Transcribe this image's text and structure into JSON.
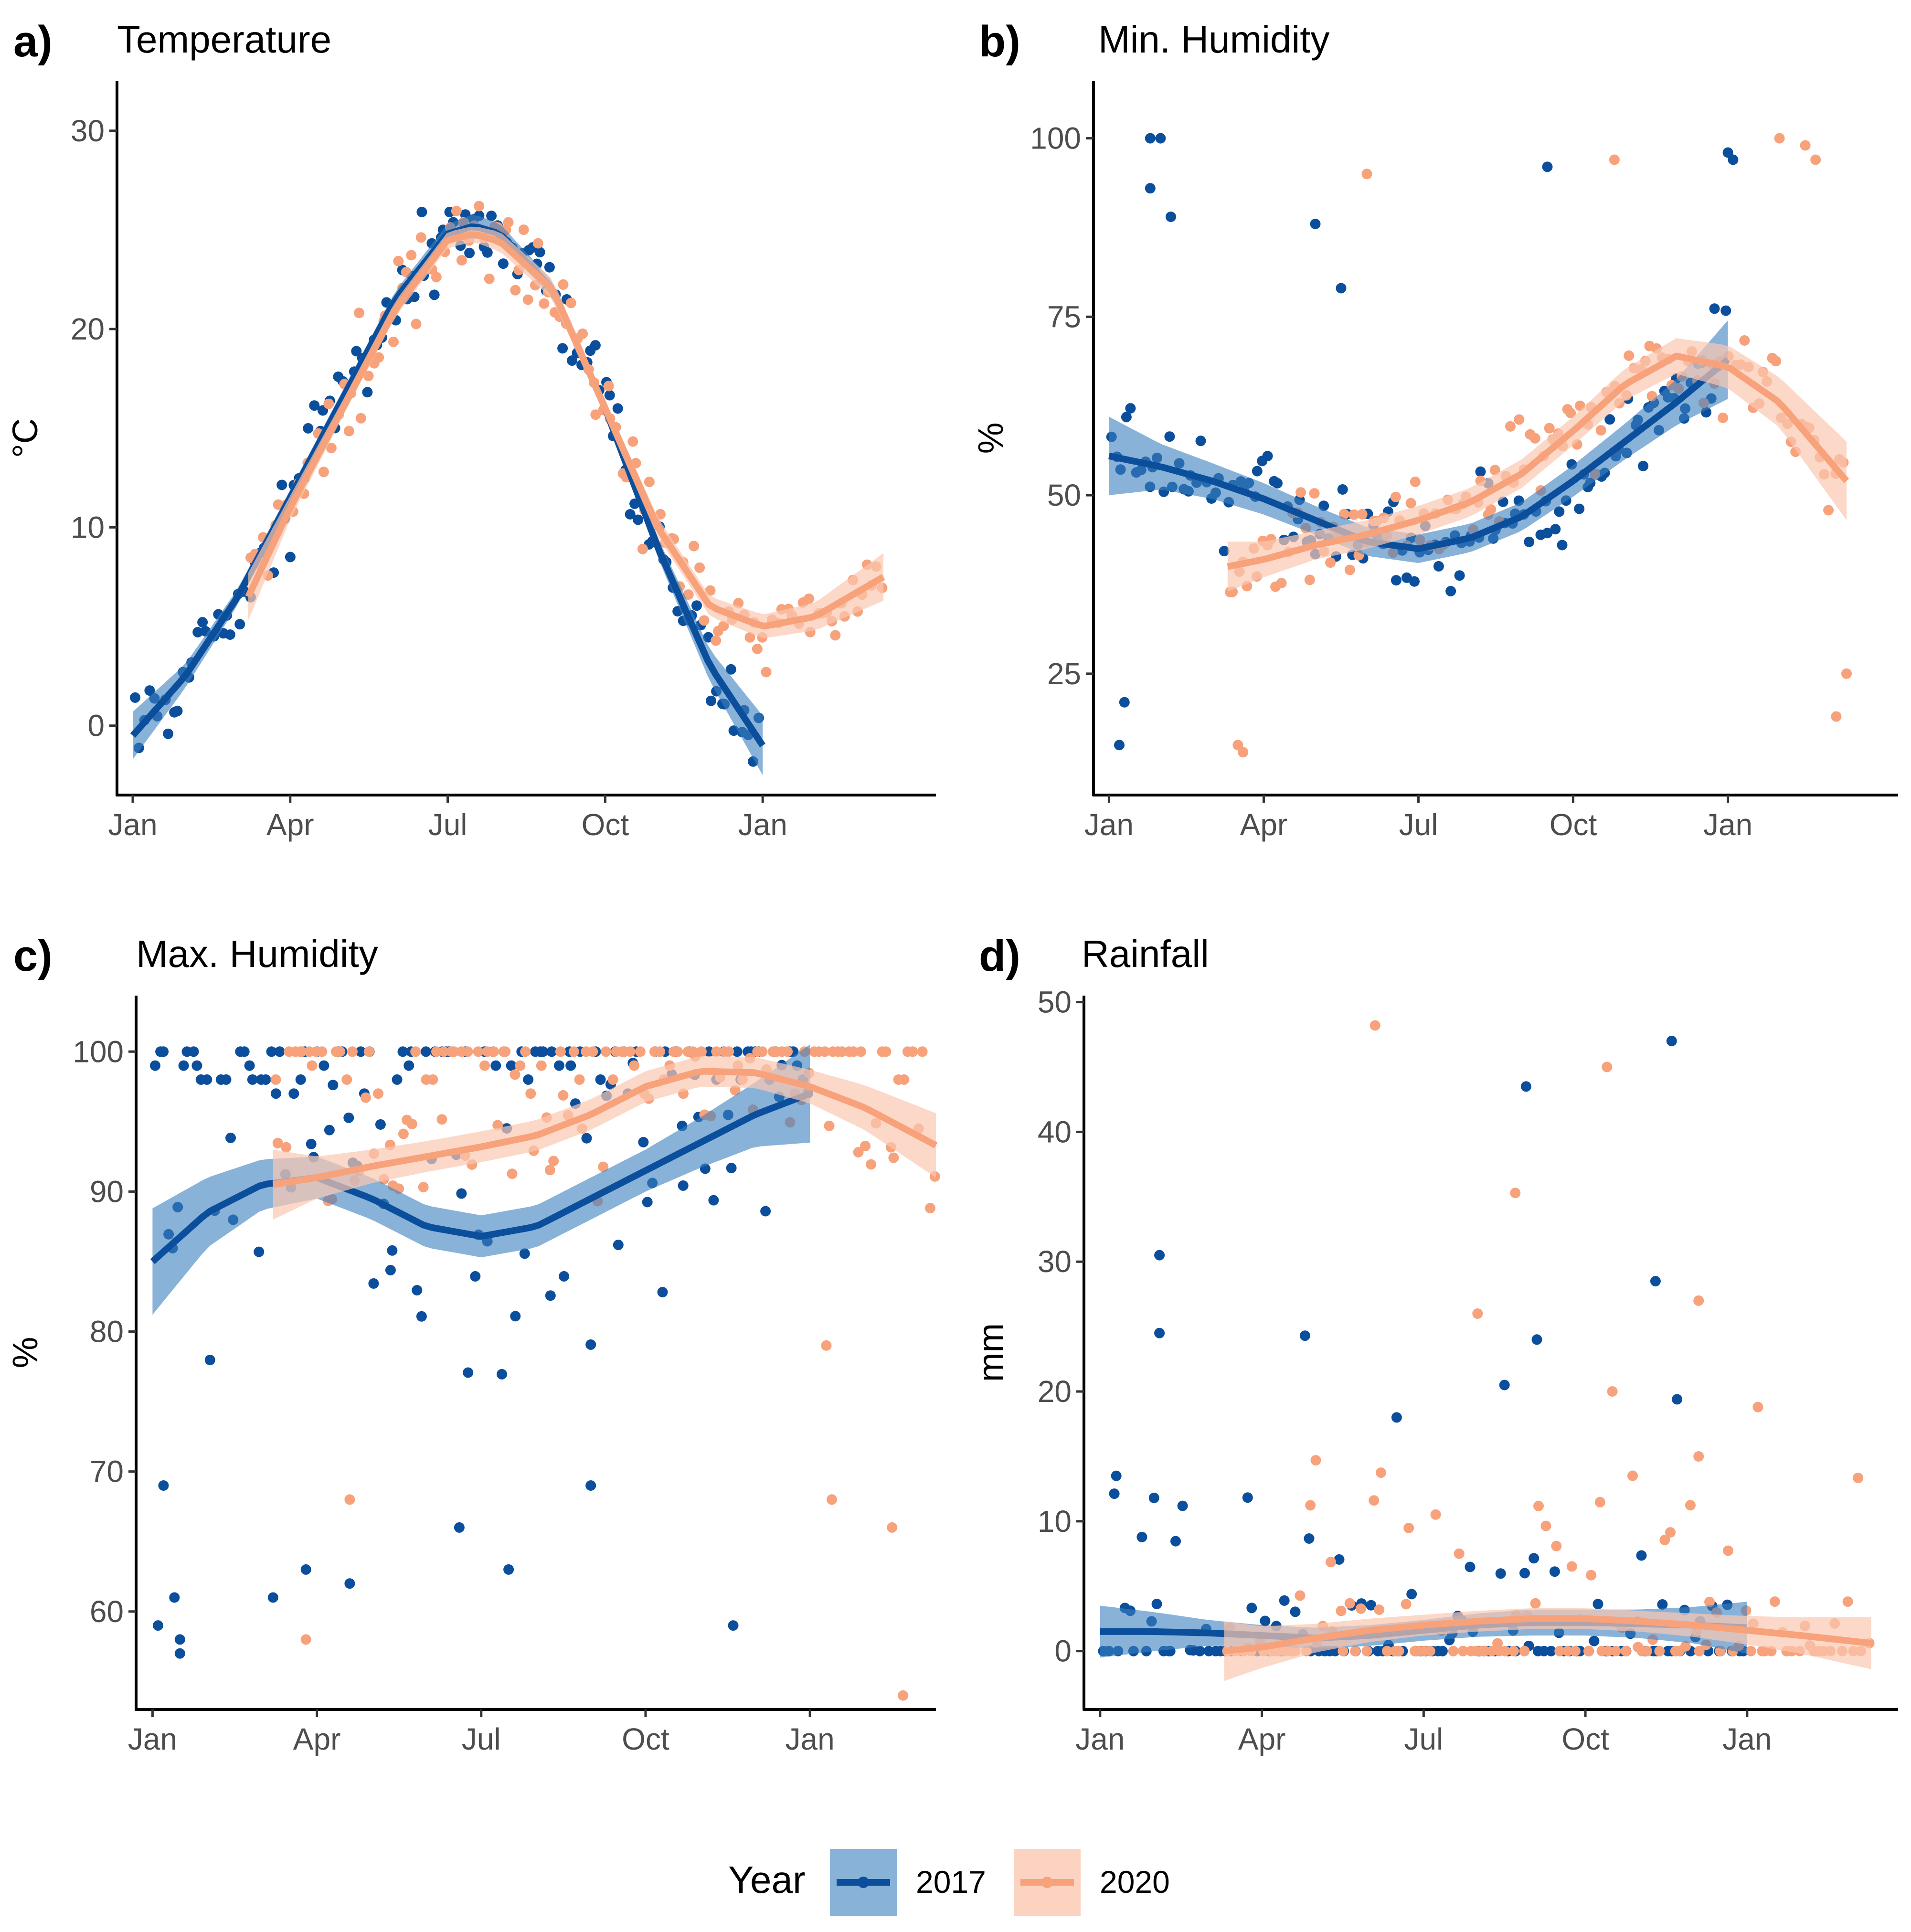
{
  "legend": {
    "title": "Year",
    "entries": [
      {
        "label": "2017",
        "color": "#0b4f9c",
        "band": "#3a7ebf"
      },
      {
        "label": "2020",
        "color": "#f7a27b",
        "band": "#fbc8b0"
      }
    ]
  },
  "chart_data": [
    {
      "id": "a",
      "letter": "a)",
      "title": "Temperature",
      "type": "scatter",
      "xlabel": "",
      "ylabel": "°C",
      "xlim": [
        -0.3,
        15.3
      ],
      "ylim": [
        -3.5,
        32.5
      ],
      "xticks": [
        {
          "v": 0,
          "label": "Jan"
        },
        {
          "v": 3,
          "label": "Apr"
        },
        {
          "v": 6,
          "label": "Jul"
        },
        {
          "v": 9,
          "label": "Oct"
        },
        {
          "v": 12,
          "label": "Jan"
        }
      ],
      "yticks": [
        {
          "v": 0,
          "label": "0"
        },
        {
          "v": 10,
          "label": "10"
        },
        {
          "v": 20,
          "label": "20"
        },
        {
          "v": 30,
          "label": "30"
        }
      ],
      "series": [
        {
          "name": "2017",
          "x_start": 0,
          "x_end": 12,
          "smooth": [
            [
              0,
              -0.5
            ],
            [
              1,
              2.5
            ],
            [
              2,
              6.5
            ],
            [
              3,
              11.5
            ],
            [
              4,
              16.5
            ],
            [
              5,
              21.5
            ],
            [
              6,
              24.8
            ],
            [
              6.5,
              25.2
            ],
            [
              7,
              24.8
            ],
            [
              8,
              22
            ],
            [
              9,
              16
            ],
            [
              10,
              9
            ],
            [
              11,
              3
            ],
            [
              12,
              -1
            ]
          ],
          "band": [
            1.2,
            0.6,
            0.4,
            0.4,
            0.4,
            0.4,
            0.5,
            0.6,
            0.5,
            0.4,
            0.4,
            0.5,
            0.8,
            1.5
          ],
          "pattern": "spread",
          "spread": 4,
          "n": 130,
          "outliers": []
        },
        {
          "name": "2020",
          "x_start": 2.2,
          "x_end": 14.3,
          "smooth": [
            [
              2.2,
              6.5
            ],
            [
              3,
              11
            ],
            [
              4,
              16
            ],
            [
              5,
              21
            ],
            [
              6,
              24.5
            ],
            [
              6.5,
              24.8
            ],
            [
              7,
              24.4
            ],
            [
              8,
              22
            ],
            [
              9,
              16
            ],
            [
              10,
              10
            ],
            [
              11,
              6
            ],
            [
              12,
              5
            ],
            [
              13,
              5.5
            ],
            [
              14.3,
              7.5
            ]
          ],
          "band": [
            1.2,
            0.6,
            0.4,
            0.4,
            0.4,
            0.4,
            0.5,
            0.5,
            0.4,
            0.5,
            0.5,
            0.6,
            0.7,
            1.2
          ],
          "pattern": "spread",
          "spread": 4.5,
          "n": 130,
          "outliers": []
        }
      ]
    },
    {
      "id": "b",
      "letter": "b)",
      "title": "Min. Humidity",
      "type": "scatter",
      "xlabel": "",
      "ylabel": "%",
      "xlim": [
        -0.3,
        15.3
      ],
      "ylim": [
        8,
        108
      ],
      "xticks": [
        {
          "v": 0,
          "label": "Jan"
        },
        {
          "v": 3,
          "label": "Apr"
        },
        {
          "v": 6,
          "label": "Jul"
        },
        {
          "v": 9,
          "label": "Oct"
        },
        {
          "v": 12,
          "label": "Jan"
        }
      ],
      "yticks": [
        {
          "v": 25,
          "label": "25"
        },
        {
          "v": 50,
          "label": "50"
        },
        {
          "v": 75,
          "label": "75"
        },
        {
          "v": 100,
          "label": "100"
        }
      ],
      "series": [
        {
          "name": "2017",
          "x_start": 0,
          "x_end": 12,
          "smooth": [
            [
              0,
              55.5
            ],
            [
              1,
              54
            ],
            [
              2,
              52
            ],
            [
              3,
              49.5
            ],
            [
              4,
              46.5
            ],
            [
              5,
              43.5
            ],
            [
              6,
              42.5
            ],
            [
              7,
              44
            ],
            [
              8,
              47
            ],
            [
              9,
              52
            ],
            [
              10,
              57.5
            ],
            [
              11,
              63
            ],
            [
              12,
              69
            ]
          ],
          "band": [
            5.5,
            3.2,
            2.5,
            2.2,
            2,
            2,
            2,
            2,
            2,
            2.2,
            2.5,
            3.2,
            5.5
          ],
          "pattern": "spread",
          "spread": 13,
          "n": 130,
          "outliers": [
            [
              0.8,
              100
            ],
            [
              1,
              100
            ],
            [
              0.8,
              93
            ],
            [
              0.2,
              15
            ],
            [
              0.3,
              21
            ],
            [
              1.2,
              89
            ],
            [
              12,
              98
            ],
            [
              12.1,
              97
            ],
            [
              4,
              88
            ],
            [
              4.5,
              79
            ],
            [
              8.5,
              96
            ]
          ]
        },
        {
          "name": "2020",
          "x_start": 2.3,
          "x_end": 14.3,
          "smooth": [
            [
              2.3,
              40
            ],
            [
              3,
              41
            ],
            [
              4,
              43
            ],
            [
              5,
              44.5
            ],
            [
              6,
              46.5
            ],
            [
              7,
              49
            ],
            [
              8,
              53
            ],
            [
              9,
              59
            ],
            [
              10,
              65.5
            ],
            [
              11,
              69.5
            ],
            [
              12,
              68
            ],
            [
              13,
              63
            ],
            [
              14.3,
              52
            ]
          ],
          "band": [
            3.5,
            2.5,
            2,
            2,
            2,
            2,
            2,
            2,
            2.2,
            2.5,
            3,
            3.5,
            5.5
          ],
          "pattern": "spread",
          "spread": 13,
          "n": 130,
          "outliers": [
            [
              13,
              100
            ],
            [
              13.5,
              99
            ],
            [
              13.7,
              97
            ],
            [
              5,
              95
            ],
            [
              9.8,
              97
            ],
            [
              14.1,
              19
            ],
            [
              14.3,
              25
            ],
            [
              2.5,
              15
            ],
            [
              2.6,
              14
            ]
          ]
        }
      ]
    },
    {
      "id": "c",
      "letter": "c)",
      "title": "Max. Humidity",
      "type": "scatter",
      "xlabel": "",
      "ylabel": "%",
      "xlim": [
        -0.3,
        14.3
      ],
      "ylim": [
        53,
        104
      ],
      "xticks": [
        {
          "v": 0,
          "label": "Jan"
        },
        {
          "v": 3,
          "label": "Apr"
        },
        {
          "v": 6,
          "label": "Jul"
        },
        {
          "v": 9,
          "label": "Oct"
        },
        {
          "v": 12,
          "label": "Jan"
        }
      ],
      "yticks": [
        {
          "v": 60,
          "label": "60"
        },
        {
          "v": 70,
          "label": "70"
        },
        {
          "v": 80,
          "label": "80"
        },
        {
          "v": 90,
          "label": "90"
        },
        {
          "v": 100,
          "label": "100"
        }
      ],
      "series": [
        {
          "name": "2017",
          "x_start": 0,
          "x_end": 12,
          "smooth": [
            [
              0,
              85
            ],
            [
              1,
              88.5
            ],
            [
              2,
              90.5
            ],
            [
              3,
              91
            ],
            [
              4,
              89.5
            ],
            [
              5,
              87.5
            ],
            [
              6,
              86.8
            ],
            [
              7,
              87.5
            ],
            [
              8,
              89.5
            ],
            [
              9,
              91.5
            ],
            [
              10,
              93.5
            ],
            [
              11,
              95.5
            ],
            [
              12,
              97
            ]
          ],
          "band": [
            3.8,
            2.5,
            1.8,
            1.5,
            1.5,
            1.5,
            1.5,
            1.5,
            1.5,
            1.5,
            1.8,
            2.3,
            3.5
          ],
          "pattern": "capped",
          "spread": 22,
          "n": 140,
          "outliers": [
            [
              0.1,
              59
            ],
            [
              0.5,
              57
            ],
            [
              0.5,
              58
            ],
            [
              0.4,
              61
            ],
            [
              2.2,
              61
            ],
            [
              2.8,
              63
            ],
            [
              3.6,
              62
            ],
            [
              5.6,
              66
            ],
            [
              6.5,
              63
            ],
            [
              8,
              69
            ],
            [
              10.6,
              59
            ],
            [
              0.2,
              69
            ]
          ]
        },
        {
          "name": "2020",
          "x_start": 2.2,
          "x_end": 14.3,
          "smooth": [
            [
              2.2,
              90.5
            ],
            [
              3,
              91
            ],
            [
              4,
              91.8
            ],
            [
              5,
              92.5
            ],
            [
              6,
              93.2
            ],
            [
              7,
              94
            ],
            [
              8,
              95.5
            ],
            [
              9,
              97.5
            ],
            [
              10,
              98.6
            ],
            [
              11,
              98.5
            ],
            [
              12,
              97.5
            ],
            [
              13,
              96
            ],
            [
              14.3,
              93.3
            ]
          ],
          "band": [
            2.5,
            1.5,
            1.2,
            1.1,
            1.1,
            1.1,
            1.1,
            1.1,
            1.1,
            1.1,
            1.2,
            1.6,
            2.3
          ],
          "pattern": "capped",
          "spread": 14,
          "n": 140,
          "outliers": [
            [
              2.8,
              58
            ],
            [
              13.7,
              54
            ],
            [
              13.5,
              66
            ],
            [
              12.4,
              68
            ],
            [
              3.6,
              68
            ],
            [
              12.3,
              79
            ]
          ]
        }
      ]
    },
    {
      "id": "d",
      "letter": "d)",
      "title": "Rainfall",
      "type": "scatter",
      "xlabel": "",
      "ylabel": "mm",
      "xlim": [
        -0.3,
        14.8
      ],
      "ylim": [
        -4.5,
        50.5
      ],
      "xticks": [
        {
          "v": 0,
          "label": "Jan"
        },
        {
          "v": 3,
          "label": "Apr"
        },
        {
          "v": 6,
          "label": "Jul"
        },
        {
          "v": 9,
          "label": "Oct"
        },
        {
          "v": 12,
          "label": "Jan"
        }
      ],
      "yticks": [
        {
          "v": 0,
          "label": "0"
        },
        {
          "v": 10,
          "label": "10"
        },
        {
          "v": 20,
          "label": "20"
        },
        {
          "v": 30,
          "label": "30"
        },
        {
          "v": 40,
          "label": "40"
        },
        {
          "v": 50,
          "label": "50"
        }
      ],
      "series": [
        {
          "name": "2017",
          "x_start": 0,
          "x_end": 12,
          "smooth": [
            [
              0,
              1.5
            ],
            [
              1,
              1.5
            ],
            [
              2,
              1.4
            ],
            [
              3,
              1.2
            ],
            [
              4,
              1
            ],
            [
              5,
              1.2
            ],
            [
              6,
              1.6
            ],
            [
              7,
              2
            ],
            [
              8,
              2.2
            ],
            [
              9,
              2.2
            ],
            [
              10,
              2.1
            ],
            [
              11,
              2
            ],
            [
              12,
              1.8
            ]
          ],
          "band": [
            2,
            1.5,
            1,
            0.8,
            0.8,
            0.8,
            0.8,
            0.9,
            1,
            1,
            1.1,
            1.4,
            2
          ],
          "pattern": "rain",
          "spread": 0,
          "n": 120,
          "outliers": [
            [
              1.1,
              30.5
            ],
            [
              1.1,
              24.5
            ],
            [
              3.8,
              24.3
            ],
            [
              7.9,
              43.5
            ],
            [
              8.1,
              24
            ],
            [
              10.3,
              28.5
            ],
            [
              10.6,
              47
            ],
            [
              10.7,
              19.4
            ],
            [
              5.5,
              18
            ],
            [
              7.5,
              20.5
            ],
            [
              0.3,
              13.5
            ],
            [
              1,
              11.8
            ]
          ]
        },
        {
          "name": "2020",
          "x_start": 2.3,
          "x_end": 14.3,
          "smooth": [
            [
              2.3,
              0
            ],
            [
              3,
              0.3
            ],
            [
              4,
              1
            ],
            [
              5,
              1.6
            ],
            [
              6,
              2
            ],
            [
              7,
              2.3
            ],
            [
              8,
              2.5
            ],
            [
              9,
              2.5
            ],
            [
              10,
              2.3
            ],
            [
              11,
              2
            ],
            [
              12,
              1.6
            ],
            [
              13,
              1.2
            ],
            [
              14.3,
              0.6
            ]
          ],
          "band": [
            2.3,
            1.6,
            1.1,
            0.9,
            0.8,
            0.8,
            0.8,
            0.8,
            0.8,
            0.9,
            1.1,
            1.4,
            2
          ],
          "pattern": "rain",
          "spread": 0,
          "n": 120,
          "outliers": [
            [
              5.1,
              48.2
            ],
            [
              9.4,
              45
            ],
            [
              7.7,
              35.3
            ],
            [
              7,
              26
            ],
            [
              11.1,
              27
            ],
            [
              12.2,
              18.8
            ],
            [
              9.5,
              20
            ],
            [
              4,
              14.7
            ],
            [
              11.1,
              15
            ]
          ]
        }
      ]
    }
  ]
}
